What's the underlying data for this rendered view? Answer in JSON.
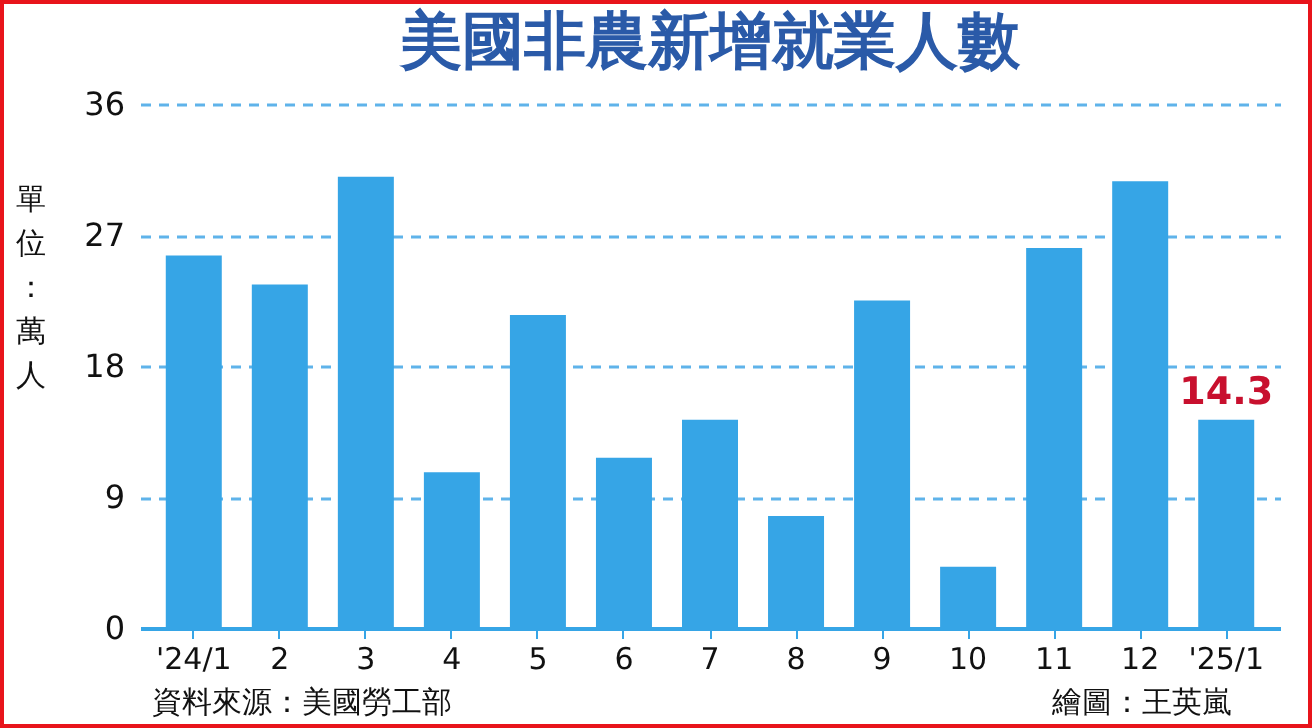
{
  "chart_data": {
    "type": "bar",
    "title": "美國非農新增就業人數",
    "ylabel": "單位：萬人",
    "categories": [
      "'24/1",
      "2",
      "3",
      "4",
      "5",
      "6",
      "7",
      "8",
      "9",
      "10",
      "11",
      "12",
      "'25/1"
    ],
    "values": [
      25.6,
      23.6,
      31.0,
      10.7,
      21.5,
      11.7,
      14.3,
      7.7,
      22.5,
      4.2,
      26.1,
      30.7,
      14.3
    ],
    "value_labels": [
      null,
      null,
      null,
      null,
      null,
      null,
      null,
      null,
      null,
      null,
      null,
      null,
      "14.3"
    ],
    "color": "#36a5e6",
    "ylim": [
      0,
      36
    ],
    "yticks": [
      0,
      9,
      18,
      27,
      36
    ],
    "grid": "y",
    "line_style": "dashed",
    "annotations": [
      "資料來源：美國勞工部",
      "繪圖：王英嵐"
    ]
  }
}
